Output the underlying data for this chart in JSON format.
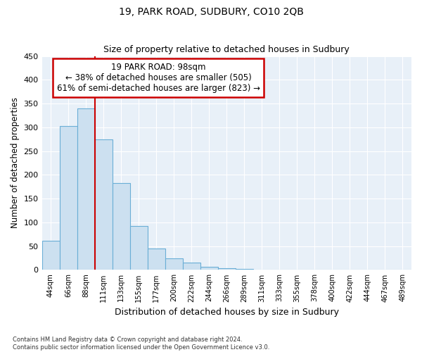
{
  "title": "19, PARK ROAD, SUDBURY, CO10 2QB",
  "subtitle": "Size of property relative to detached houses in Sudbury",
  "xlabel": "Distribution of detached houses by size in Sudbury",
  "ylabel": "Number of detached properties",
  "bar_labels": [
    "44sqm",
    "66sqm",
    "88sqm",
    "111sqm",
    "133sqm",
    "155sqm",
    "177sqm",
    "200sqm",
    "222sqm",
    "244sqm",
    "266sqm",
    "289sqm",
    "311sqm",
    "333sqm",
    "355sqm",
    "378sqm",
    "400sqm",
    "422sqm",
    "444sqm",
    "467sqm",
    "489sqm"
  ],
  "bar_values": [
    62,
    302,
    340,
    275,
    183,
    92,
    45,
    24,
    16,
    7,
    3,
    2,
    1,
    1,
    1,
    0,
    0,
    0,
    1,
    0,
    1
  ],
  "bar_color": "#cce0f0",
  "bar_edge_color": "#6aaed6",
  "property_line_x": 2.5,
  "annotation_title": "19 PARK ROAD: 98sqm",
  "annotation_line1": "← 38% of detached houses are smaller (505)",
  "annotation_line2": "61% of semi-detached houses are larger (823) →",
  "annotation_box_color": "#ffffff",
  "annotation_box_edge": "#cc0000",
  "line_color": "#cc0000",
  "ylim": [
    0,
    450
  ],
  "yticks": [
    0,
    50,
    100,
    150,
    200,
    250,
    300,
    350,
    400,
    450
  ],
  "footnote1": "Contains HM Land Registry data © Crown copyright and database right 2024.",
  "footnote2": "Contains public sector information licensed under the Open Government Licence v3.0.",
  "background_color": "#ffffff",
  "plot_bg_color": "#e8f0f8",
  "grid_color": "#ffffff"
}
